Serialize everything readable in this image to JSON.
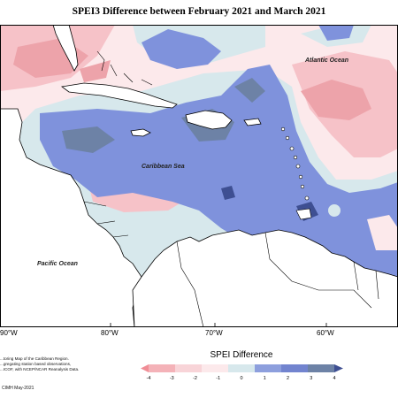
{
  "title": "SPEI3 Difference between February 2021 and March 2021",
  "ocean_labels": {
    "atlantic": "Atlantic Ocean",
    "caribbean": "Caribbean Sea",
    "pacific": "Pacific Ocean"
  },
  "longitude_labels": [
    "90°W",
    "80°W",
    "70°W",
    "60°W"
  ],
  "legend": {
    "title": "SPEI Difference",
    "ticks": [
      "-4",
      "-3",
      "-2",
      "-1",
      "0",
      "1",
      "2",
      "3",
      "4"
    ],
    "colors": [
      "#f08d96",
      "#f4b2b8",
      "#f8d4d8",
      "#fce9eb",
      "#d7e8ec",
      "#8d9fdd",
      "#7284cf",
      "#6d82a6",
      "#3e4f92"
    ]
  },
  "credit": {
    "lines": [
      "...toring Map of the Caribbean Region.",
      "...gregating station based observations,",
      "...ICOF, with NCEP/NCAR Reanalysis Data."
    ],
    "bottom": "CIMH May-2021"
  },
  "colors": {
    "land": "#ffffff",
    "coast": "#000000",
    "strong_positive": "#6d82a6",
    "positive": "#7f92dc",
    "weak_positive": "#d7e8ec",
    "weak_negative": "#fce9eb",
    "negative": "#f6c2c8",
    "strong_negative": "#eda3aa"
  }
}
